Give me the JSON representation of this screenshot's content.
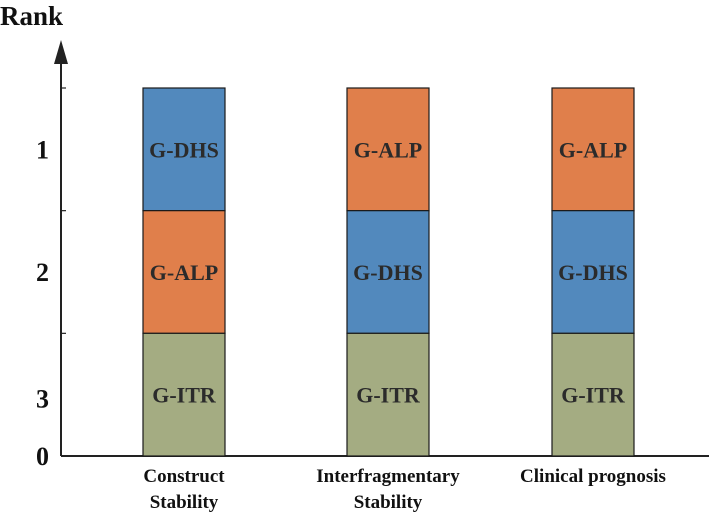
{
  "chart_data": {
    "type": "bar",
    "stacked": true,
    "title": "Rank",
    "ylabel": "Rank",
    "xlabel": "",
    "y_tick_labels": [
      "1",
      "2",
      "3",
      "0"
    ],
    "categories": [
      [
        "Construct",
        "Stability"
      ],
      [
        "Interfragmentary",
        "Stability"
      ],
      [
        "Clinical prognosis"
      ]
    ],
    "stacks": [
      [
        "G-DHS",
        "G-ALP",
        "G-ITR"
      ],
      [
        "G-ALP",
        "G-DHS",
        "G-ITR"
      ],
      [
        "G-ALP",
        "G-DHS",
        "G-ITR"
      ]
    ],
    "segment_colors": {
      "G-DHS": "#5289bd",
      "G-ALP": "#e07f4b",
      "G-ITR": "#a4ac82"
    },
    "legend": "none",
    "grid": false
  }
}
